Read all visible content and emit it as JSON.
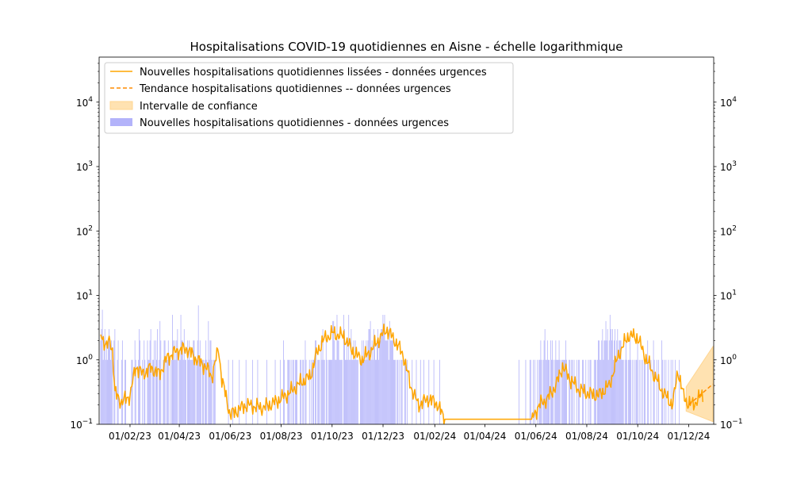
{
  "chart_data": {
    "type": "bar",
    "title": "Hospitalisations COVID-19 quotidiennes en Aisne - échelle logarithmique",
    "xlabel": "",
    "ylabel": "",
    "yscale": "log",
    "ylim": [
      0.1,
      50000
    ],
    "y_ticks": [
      {
        "value": 0.1,
        "base": "10",
        "exp": "−1"
      },
      {
        "value": 1,
        "base": "10",
        "exp": "0"
      },
      {
        "value": 10,
        "base": "10",
        "exp": "1"
      },
      {
        "value": 100,
        "base": "10",
        "exp": "2"
      },
      {
        "value": 1000,
        "base": "10",
        "exp": "3"
      },
      {
        "value": 10000,
        "base": "10",
        "exp": "4"
      }
    ],
    "xlim": [
      "2022-12-26",
      "2024-12-31"
    ],
    "x_ticks": [
      {
        "date": "2023-02-01",
        "label": "01/02/23"
      },
      {
        "date": "2023-04-01",
        "label": "01/04/23"
      },
      {
        "date": "2023-06-01",
        "label": "01/06/23"
      },
      {
        "date": "2023-08-01",
        "label": "01/08/23"
      },
      {
        "date": "2023-10-01",
        "label": "01/10/23"
      },
      {
        "date": "2023-12-01",
        "label": "01/12/23"
      },
      {
        "date": "2024-02-01",
        "label": "01/02/24"
      },
      {
        "date": "2024-04-01",
        "label": "01/04/24"
      },
      {
        "date": "2024-06-01",
        "label": "01/06/24"
      },
      {
        "date": "2024-08-01",
        "label": "01/08/24"
      },
      {
        "date": "2024-10-01",
        "label": "01/10/24"
      },
      {
        "date": "2024-12-01",
        "label": "01/12/24"
      }
    ],
    "legend": {
      "placement": "upper left",
      "entries": [
        "Nouvelles hospitalisations quotidiennes lissées - données urgences",
        "Tendance hospitalisations quotidiennes -- données urgences",
        "Intervalle de confiance",
        "Nouvelles hospitalisations quotidiennes - données urgences"
      ]
    },
    "colors": {
      "bars": "#b3b3fa",
      "smoothed": "#ffa500",
      "trend": "#ff8c00",
      "ci_fill": "#ffd590"
    },
    "grid": false,
    "bars_start": "2022-12-28",
    "daily_bars": [
      2,
      3,
      6,
      1,
      2,
      3,
      1,
      2,
      1,
      2,
      3,
      2,
      1,
      2,
      1,
      0,
      2,
      3,
      0,
      0,
      1,
      2,
      0,
      0,
      0,
      1,
      2,
      0,
      0,
      1,
      1,
      0,
      0,
      0,
      0,
      0,
      0,
      1,
      1,
      0,
      0,
      2,
      1,
      0,
      0,
      1,
      3,
      2,
      0,
      0,
      1,
      0,
      2,
      1,
      0,
      0,
      2,
      1,
      1,
      2,
      3,
      0,
      1,
      1,
      2,
      0,
      2,
      1,
      3,
      0,
      1,
      4,
      2,
      0,
      0,
      1,
      2,
      2,
      0,
      1,
      1,
      2,
      0,
      1,
      0,
      1,
      5,
      2,
      1,
      2,
      1,
      2,
      3,
      0,
      1,
      1,
      5,
      2,
      2,
      1,
      3,
      1,
      1,
      0,
      2,
      1,
      2,
      1,
      1,
      1,
      1,
      2,
      2,
      1,
      0,
      1,
      2,
      7,
      1,
      2,
      1,
      0,
      1,
      1,
      0,
      1,
      2,
      1,
      0,
      4,
      1,
      2,
      2,
      1,
      0,
      1,
      1,
      1,
      0,
      0,
      0,
      0,
      0,
      0,
      0,
      0,
      0,
      0,
      0,
      0,
      0,
      0,
      0,
      1,
      0,
      0,
      0,
      0,
      1,
      0,
      0,
      0,
      0,
      0,
      0,
      0,
      1,
      0,
      0,
      0,
      0,
      0,
      0,
      0,
      1,
      0,
      0,
      0,
      0,
      0,
      0,
      0,
      1,
      0,
      0,
      0,
      0,
      0,
      1,
      0,
      0,
      0,
      0,
      0,
      0,
      0,
      0,
      0,
      0,
      1,
      0,
      0,
      0,
      0,
      0,
      0,
      0,
      0,
      0,
      1,
      0,
      0,
      0,
      0,
      0,
      1,
      0,
      0,
      0,
      2,
      1,
      0,
      0,
      0,
      1,
      1,
      1,
      0,
      1,
      0,
      1,
      1,
      0,
      1,
      1,
      1,
      0,
      0,
      0,
      1,
      1,
      0,
      1,
      1,
      0,
      2,
      1,
      0,
      0,
      0,
      1,
      0,
      1,
      0,
      1,
      1,
      0,
      2,
      2,
      0,
      1,
      1,
      1,
      0,
      2,
      1,
      3,
      1,
      1,
      0,
      2,
      1,
      0,
      1,
      1,
      1,
      1,
      1,
      4,
      4,
      2,
      1,
      1,
      5,
      2,
      2,
      1,
      1,
      1,
      1,
      0,
      5,
      3,
      1,
      1,
      2,
      1,
      5,
      1,
      1,
      3,
      1,
      1,
      2,
      1,
      2,
      1,
      1,
      1,
      0,
      0,
      1,
      1,
      2,
      1,
      2,
      1,
      1,
      2,
      1,
      2,
      3,
      3,
      4,
      1,
      2,
      1,
      3,
      2,
      1,
      1,
      2,
      3,
      1,
      2,
      2,
      3,
      3,
      5,
      3,
      5,
      2,
      2,
      2,
      3,
      1,
      4,
      2,
      2,
      2,
      2,
      1,
      1,
      1,
      0,
      1,
      1,
      0,
      1,
      0,
      1,
      1,
      0,
      0,
      1,
      1,
      0,
      1,
      0,
      0,
      0,
      0,
      0,
      1,
      0,
      0,
      0,
      0,
      1,
      0,
      0,
      0,
      0,
      1,
      0,
      0,
      0,
      1,
      0,
      0,
      0,
      0,
      0,
      1,
      0,
      0,
      0,
      0,
      0,
      1,
      0,
      0,
      0,
      0,
      0,
      0,
      1,
      0,
      0,
      0,
      0,
      0,
      0,
      0,
      0,
      0,
      0,
      0,
      0,
      0,
      0,
      0,
      0,
      0,
      0,
      0,
      0,
      0,
      0,
      0,
      0,
      0,
      0,
      0,
      0,
      0,
      0,
      0,
      0,
      0,
      0,
      0,
      0,
      0,
      0,
      0,
      0,
      0,
      0,
      0,
      0,
      0,
      0,
      0,
      0,
      0,
      0,
      0,
      0,
      0,
      0,
      0,
      0,
      0,
      0,
      0,
      0,
      0,
      0,
      0,
      0,
      0,
      0,
      0,
      0,
      0,
      0,
      0,
      0,
      0,
      0,
      0,
      0,
      0,
      0,
      0,
      0,
      0,
      0,
      0,
      0,
      0,
      0,
      0,
      0,
      0,
      0,
      0,
      0,
      0,
      0,
      1,
      0,
      0,
      0,
      0,
      0,
      0,
      0,
      1,
      0,
      0,
      0,
      0,
      1,
      1,
      0,
      0,
      1,
      0,
      1,
      0,
      0,
      1,
      0,
      1,
      1,
      2,
      1,
      0,
      1,
      2,
      3,
      1,
      1,
      2,
      1,
      1,
      0,
      2,
      1,
      2,
      1,
      0,
      1,
      2,
      1,
      1,
      1,
      2,
      1,
      0,
      1,
      1,
      1,
      1,
      1,
      2,
      1,
      0,
      0,
      1,
      1,
      0,
      1,
      1,
      0,
      1,
      0,
      0,
      1,
      0,
      1,
      1,
      0,
      0,
      0,
      1,
      1,
      0,
      0,
      1,
      0,
      0,
      1,
      0,
      1,
      1,
      0,
      0,
      0,
      1,
      1,
      1,
      0,
      1,
      2,
      2,
      1,
      1,
      2,
      3,
      1,
      2,
      2,
      4,
      2,
      3,
      1,
      2,
      5,
      3,
      2,
      3,
      1,
      2,
      3,
      1,
      2,
      3,
      1,
      2,
      2,
      2,
      1,
      1,
      1,
      0,
      1,
      2,
      1,
      0,
      1,
      1,
      2,
      1,
      0,
      1,
      0,
      1,
      0,
      1,
      1,
      2,
      0,
      1,
      0,
      1,
      0,
      1,
      0,
      1,
      1,
      0,
      0,
      2,
      1,
      0,
      0,
      1,
      0,
      0,
      2,
      1,
      0,
      0,
      1,
      0,
      1,
      0,
      0,
      0,
      2,
      1,
      0,
      1,
      0,
      1,
      0,
      0,
      1,
      0,
      0,
      1,
      0,
      1,
      0,
      0,
      1,
      0,
      0,
      0,
      0,
      1,
      0,
      0,
      0
    ],
    "smoothed_knots": [
      [
        "2022-12-28",
        2.5
      ],
      [
        "2023-01-04",
        1.6
      ],
      [
        "2023-01-08",
        2.0
      ],
      [
        "2023-01-11",
        1.4
      ],
      [
        "2023-01-14",
        0.3
      ],
      [
        "2023-01-22",
        0.22
      ],
      [
        "2023-02-01",
        0.28
      ],
      [
        "2023-02-08",
        0.8
      ],
      [
        "2023-02-16",
        0.6
      ],
      [
        "2023-02-26",
        0.75
      ],
      [
        "2023-03-08",
        0.6
      ],
      [
        "2023-03-18",
        1.1
      ],
      [
        "2023-03-30",
        1.4
      ],
      [
        "2023-04-10",
        1.5
      ],
      [
        "2023-04-22",
        1.0
      ],
      [
        "2023-05-02",
        0.8
      ],
      [
        "2023-05-10",
        0.55
      ],
      [
        "2023-05-18",
        1.5
      ],
      [
        "2023-05-22",
        0.5
      ],
      [
        "2023-06-01",
        0.14
      ],
      [
        "2023-06-20",
        0.2
      ],
      [
        "2023-07-10",
        0.18
      ],
      [
        "2023-07-25",
        0.22
      ],
      [
        "2023-08-10",
        0.3
      ],
      [
        "2023-08-25",
        0.45
      ],
      [
        "2023-09-05",
        0.55
      ],
      [
        "2023-09-12",
        1.2
      ],
      [
        "2023-09-20",
        2.0
      ],
      [
        "2023-10-01",
        2.6
      ],
      [
        "2023-10-15",
        2.3
      ],
      [
        "2023-10-25",
        1.4
      ],
      [
        "2023-11-05",
        1.0
      ],
      [
        "2023-11-15",
        1.3
      ],
      [
        "2023-11-25",
        2.0
      ],
      [
        "2023-12-05",
        3.0
      ],
      [
        "2023-12-15",
        2.0
      ],
      [
        "2023-12-25",
        1.2
      ],
      [
        "2024-01-03",
        0.4
      ],
      [
        "2024-01-12",
        0.2
      ],
      [
        "2024-01-25",
        0.25
      ],
      [
        "2024-02-05",
        0.2
      ],
      [
        "2024-02-12",
        0.12
      ],
      [
        "2024-05-27",
        0.12
      ],
      [
        "2024-06-05",
        0.2
      ],
      [
        "2024-06-15",
        0.25
      ],
      [
        "2024-06-25",
        0.4
      ],
      [
        "2024-07-03",
        0.8
      ],
      [
        "2024-07-12",
        0.5
      ],
      [
        "2024-07-22",
        0.35
      ],
      [
        "2024-08-02",
        0.3
      ],
      [
        "2024-08-15",
        0.28
      ],
      [
        "2024-08-28",
        0.4
      ],
      [
        "2024-09-08",
        1.2
      ],
      [
        "2024-09-20",
        2.4
      ],
      [
        "2024-10-01",
        2.2
      ],
      [
        "2024-10-10",
        1.1
      ],
      [
        "2024-10-20",
        0.6
      ],
      [
        "2024-11-01",
        0.3
      ],
      [
        "2024-11-12",
        0.2
      ],
      [
        "2024-11-18",
        0.7
      ],
      [
        "2024-11-24",
        0.3
      ],
      [
        "2024-12-01",
        0.2
      ],
      [
        "2024-12-10",
        0.22
      ],
      [
        "2024-12-18",
        0.3
      ]
    ],
    "trend": [
      [
        "2024-12-01",
        0.2
      ],
      [
        "2024-12-30",
        0.42
      ]
    ],
    "confidence_interval": {
      "dates": [
        "2024-11-28",
        "2024-12-30"
      ],
      "upper": [
        0.38,
        1.6
      ],
      "lower": [
        0.16,
        0.11
      ]
    }
  }
}
